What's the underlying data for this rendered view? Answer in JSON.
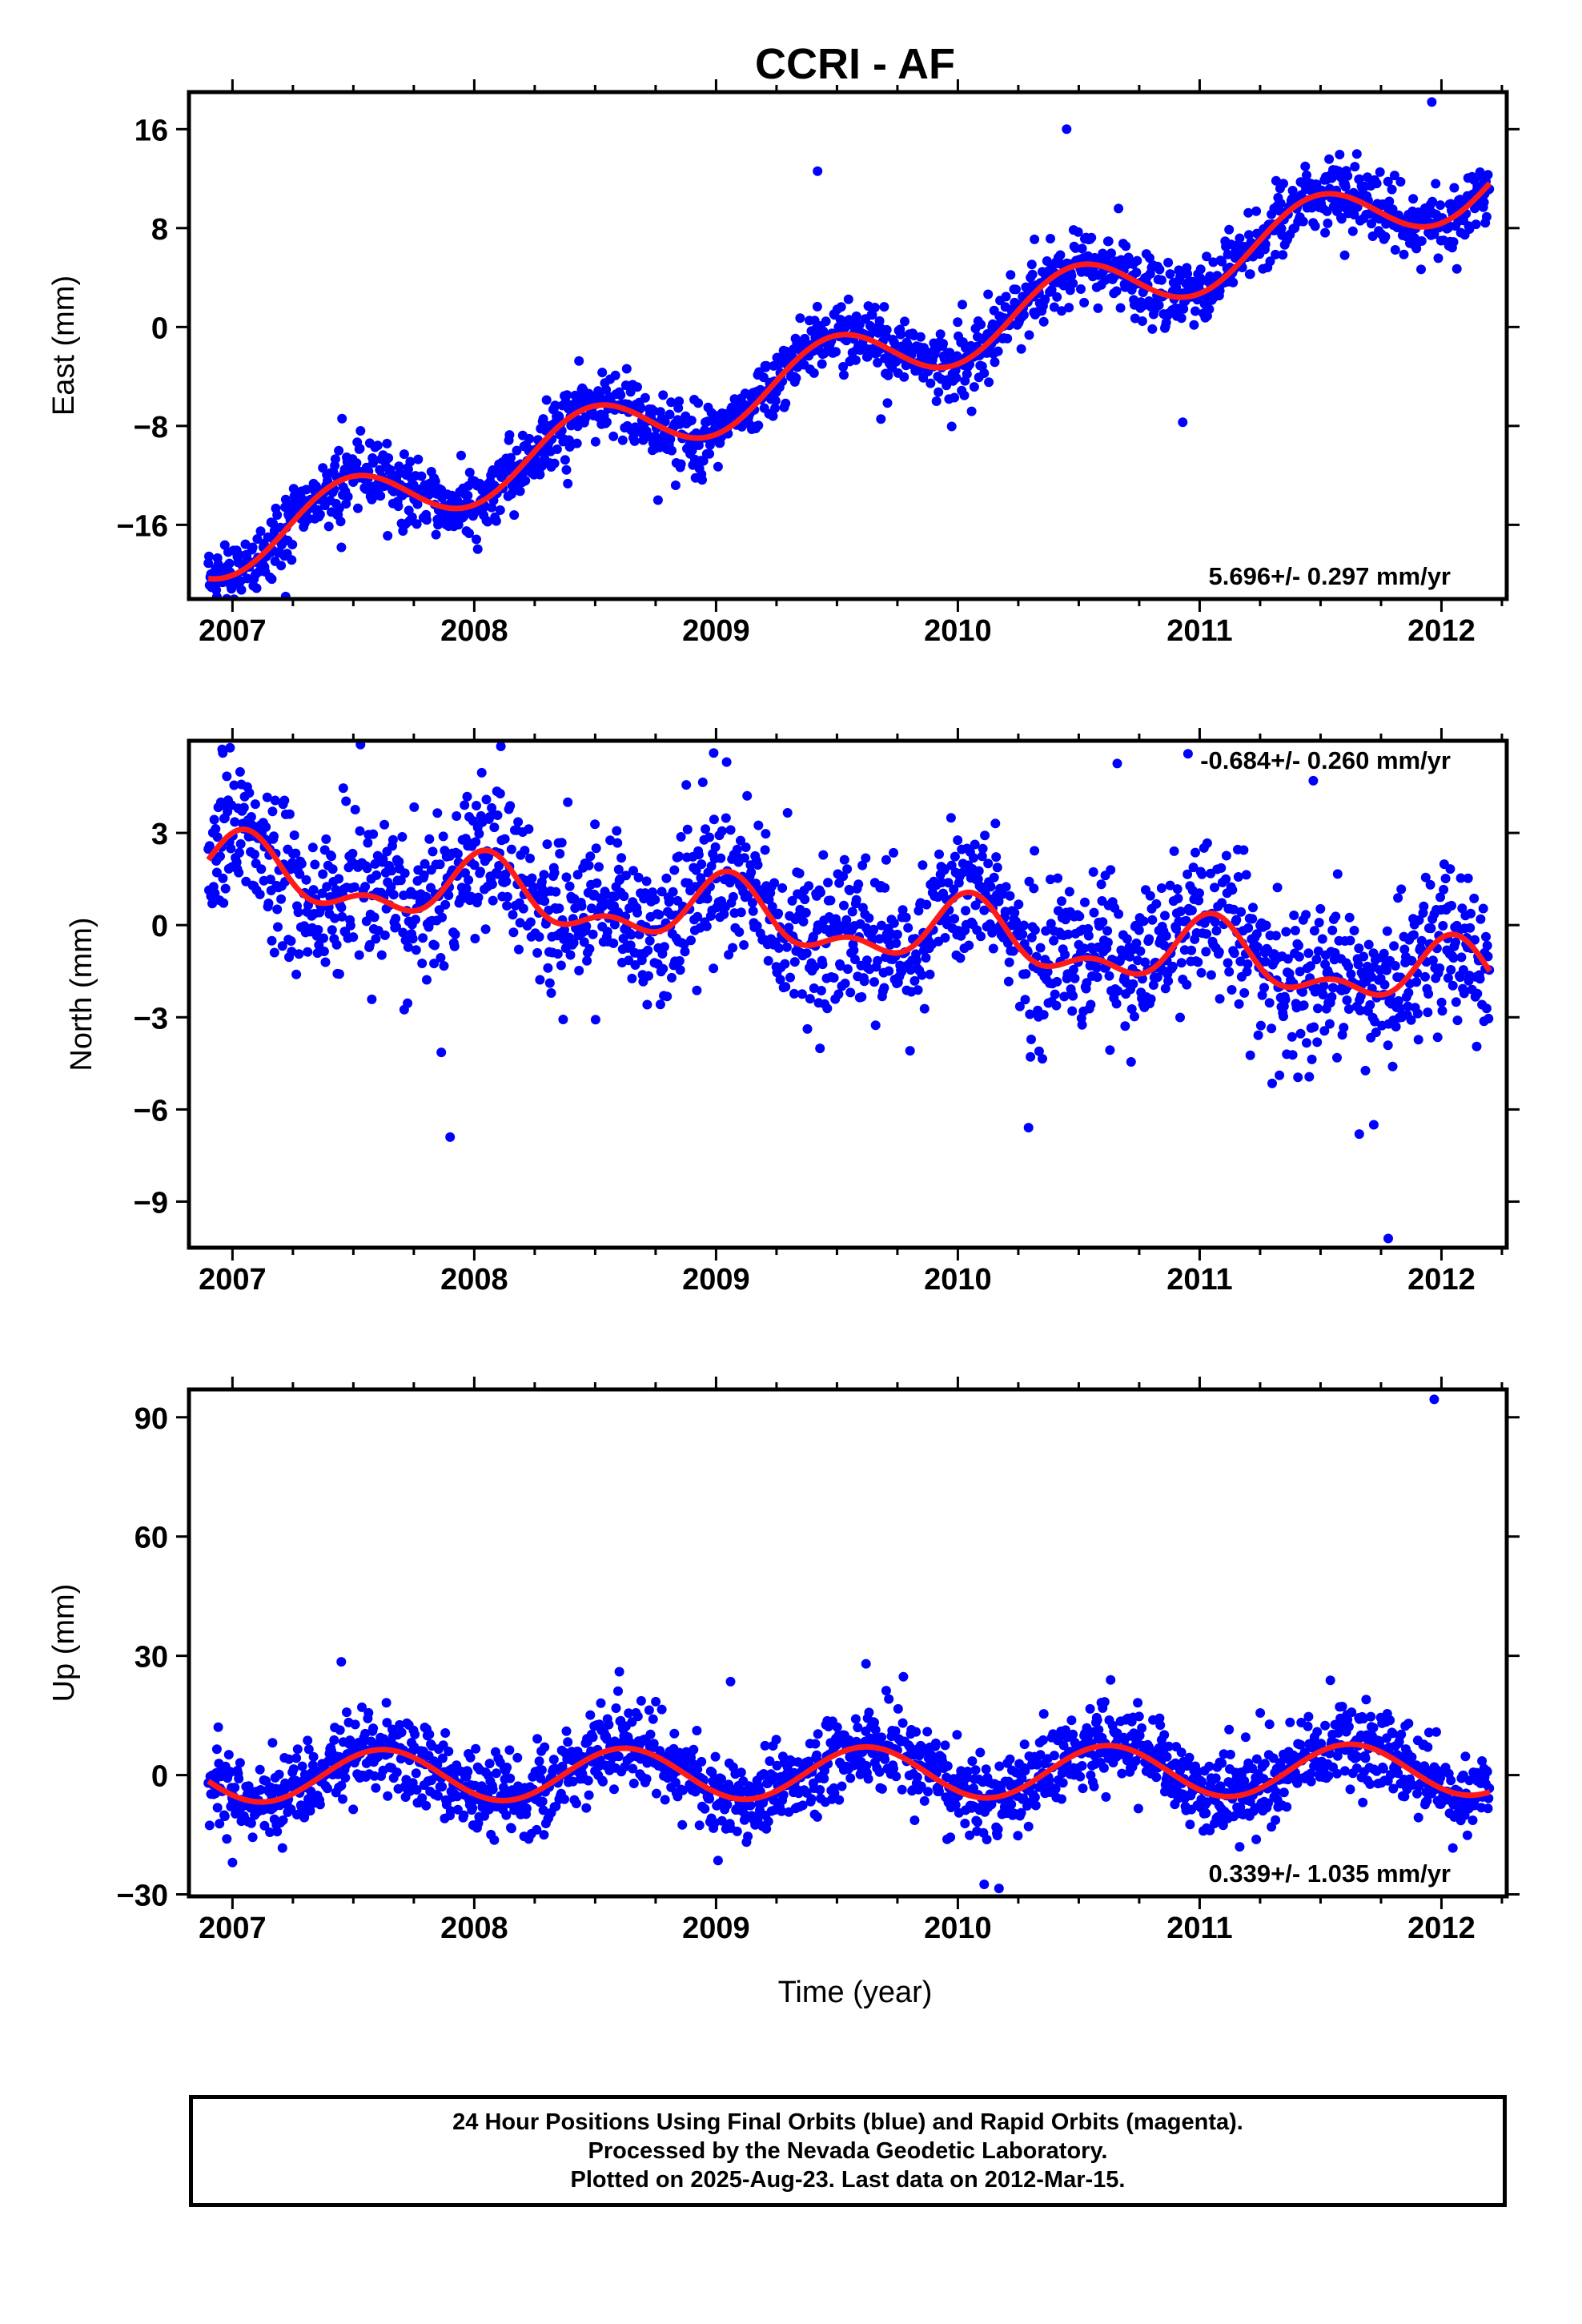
{
  "title": "CCRI - AF",
  "xlabel": "Time (year)",
  "colors": {
    "points": "#0000ff",
    "model": "#ff1a1a",
    "axis": "#000000"
  },
  "footer": {
    "line1": "24 Hour Positions Using Final Orbits (blue) and Rapid Orbits (magenta).",
    "line2": "Processed by the Nevada Geodetic Laboratory.",
    "line3": "Plotted on 2025-Aug-23. Last data on 2012-Mar-15."
  },
  "chart_data": [
    {
      "type": "scatter",
      "id": "east",
      "ylabel": "East (mm)",
      "rate_label": "5.696+/- 0.297 mm/yr",
      "xlim": [
        2006.82,
        2012.27
      ],
      "ylim": [
        -22.0,
        19.0
      ],
      "xticks": [
        2007,
        2008,
        2009,
        2010,
        2011,
        2012
      ],
      "yticks": [
        -16,
        -8,
        0,
        8,
        16
      ],
      "ytick_labels": [
        "−16",
        "−8",
        "0",
        "8",
        "16"
      ],
      "data_range": [
        2006.9,
        2012.2
      ],
      "model": {
        "rate": 5.696,
        "offset_at_2007": -17.5,
        "t0": 2007.0,
        "annual_amp": 2.6,
        "annual_peak": 2007.48,
        "semiannual_amp": 0.0,
        "semiannual_peak": 2007.0
      },
      "scatter_sigma": 1.3,
      "outliers": [
        [
          2007.22,
          -21.8
        ],
        [
          2010.93,
          -7.7
        ],
        [
          2011.96,
          18.2
        ],
        [
          2009.42,
          12.6
        ],
        [
          2010.45,
          16.0
        ],
        [
          2011.6,
          5.8
        ],
        [
          2008.76,
          -14.0
        ]
      ]
    },
    {
      "type": "scatter",
      "id": "north",
      "ylabel": "North (mm)",
      "rate_label": "-0.684+/- 0.260 mm/yr",
      "xlim": [
        2006.82,
        2012.27
      ],
      "ylim": [
        -10.5,
        6.0
      ],
      "xticks": [
        2007,
        2008,
        2009,
        2010,
        2011,
        2012
      ],
      "yticks": [
        -9,
        -6,
        -3,
        0,
        3
      ],
      "ytick_labels": [
        "−9",
        "−6",
        "−3",
        "0",
        "3"
      ],
      "data_range": [
        2006.9,
        2012.2
      ],
      "model": {
        "rate": -0.684,
        "offset_at_2007": 1.7,
        "t0": 2007.0,
        "annual_amp": 0.9,
        "annual_peak": 2007.05,
        "semiannual_amp": 0.55,
        "semiannual_peak": 2007.05
      },
      "scatter_sigma": 1.2,
      "outliers": [
        [
          2007.9,
          -6.9
        ],
        [
          2011.78,
          -10.2
        ],
        [
          2008.99,
          5.6
        ],
        [
          2006.96,
          5.6
        ],
        [
          2011.66,
          -6.8
        ],
        [
          2011.72,
          -6.5
        ],
        [
          2011.47,
          4.7
        ]
      ]
    },
    {
      "type": "scatter",
      "id": "up",
      "ylabel": "Up (mm)",
      "rate_label": "0.339+/- 1.035 mm/yr",
      "xlim": [
        2006.82,
        2012.27
      ],
      "ylim": [
        -30.5,
        97.0
      ],
      "xticks": [
        2007,
        2008,
        2009,
        2010,
        2011,
        2012
      ],
      "yticks": [
        -30,
        0,
        30,
        60,
        90
      ],
      "ytick_labels": [
        "−30",
        "0",
        "30",
        "60",
        "90"
      ],
      "data_range": [
        2006.9,
        2012.2
      ],
      "model": {
        "rate": 0.339,
        "offset_at_2007": -0.3,
        "t0": 2007.0,
        "annual_amp": 6.5,
        "annual_peak": 2007.62,
        "semiannual_amp": 0.0,
        "semiannual_peak": 2007.0
      },
      "scatter_sigma": 5.0,
      "outliers": [
        [
          2011.97,
          94.5
        ],
        [
          2010.17,
          -28.5
        ],
        [
          2007.45,
          28.5
        ],
        [
          2009.62,
          28.0
        ],
        [
          2008.6,
          26.0
        ],
        [
          2009.06,
          23.5
        ],
        [
          2007.0,
          -22.0
        ]
      ]
    }
  ]
}
